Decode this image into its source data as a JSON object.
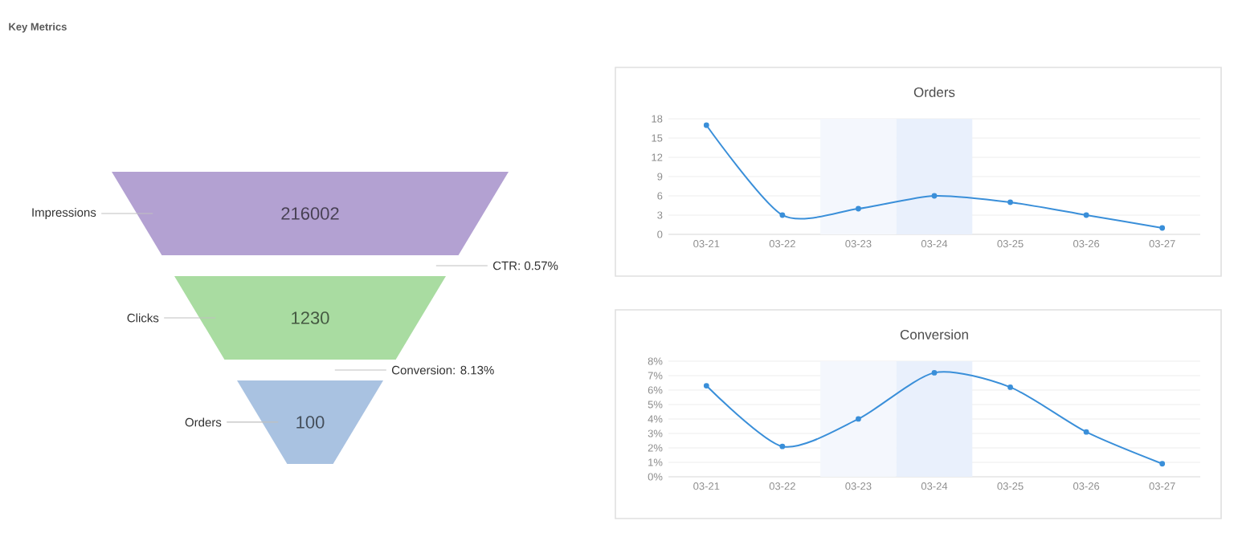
{
  "chart_data": [
    {
      "type": "other",
      "title": "Key Metrics",
      "categories": [
        "Impressions",
        "Clicks",
        "Orders"
      ],
      "values": [
        216002,
        1230,
        100
      ],
      "colors": [
        "#b3a1d2",
        "#a9dca1",
        "#a9c2e1"
      ],
      "data_labels": true,
      "annotations": [
        "CTR: 0.57%",
        "Conversion: 8.13%"
      ]
    },
    {
      "type": "line",
      "title": "Orders",
      "categories": [
        "03-21",
        "03-22",
        "03-23",
        "03-24",
        "03-25",
        "03-26",
        "03-27"
      ],
      "series": [
        {
          "color": "#3a8fd9",
          "values": [
            17,
            3,
            4,
            6,
            5,
            3,
            1
          ]
        }
      ],
      "ylim": [
        0,
        18
      ],
      "yticks": [
        0,
        3,
        6,
        9,
        12,
        15,
        18
      ],
      "grid": "y",
      "marker": "circle",
      "bands": [
        {
          "axis": "x",
          "from": "03-23",
          "to": "03-23",
          "color": "#f4f7fd"
        },
        {
          "axis": "x",
          "from": "03-24",
          "to": "03-24",
          "color": "#e9f0fc"
        }
      ]
    },
    {
      "type": "line",
      "title": "Conversion",
      "categories": [
        "03-21",
        "03-22",
        "03-23",
        "03-24",
        "03-25",
        "03-26",
        "03-27"
      ],
      "series": [
        {
          "color": "#3a8fd9",
          "values": [
            6.3,
            2.1,
            4.0,
            7.2,
            6.2,
            3.1,
            0.9
          ]
        }
      ],
      "ylim": [
        0,
        8
      ],
      "yticks": [
        {
          "value": 0,
          "label": "0%"
        },
        {
          "value": 1,
          "label": "1%"
        },
        {
          "value": 2,
          "label": "2%"
        },
        {
          "value": 3,
          "label": "3%"
        },
        {
          "value": 4,
          "label": "4%"
        },
        {
          "value": 5,
          "label": "5%"
        },
        {
          "value": 6,
          "label": "6%"
        },
        {
          "value": 7,
          "label": "7%"
        },
        {
          "value": 8,
          "label": "8%"
        }
      ],
      "grid": "y",
      "marker": "circle",
      "bands": [
        {
          "axis": "x",
          "from": "03-23",
          "to": "03-23",
          "color": "#f4f7fd"
        },
        {
          "axis": "x",
          "from": "03-24",
          "to": "03-24",
          "color": "#e9f0fc"
        }
      ]
    }
  ]
}
